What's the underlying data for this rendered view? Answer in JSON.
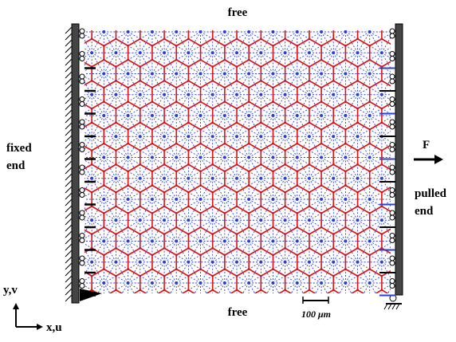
{
  "labels": {
    "top": "free",
    "bottom": "free",
    "left_1": "fixed",
    "left_2": "end",
    "force": "F",
    "right_1": "pulled",
    "right_2": "end",
    "y_axis": "y,v",
    "x_axis": "x,u",
    "scale": "100 μm"
  }
}
